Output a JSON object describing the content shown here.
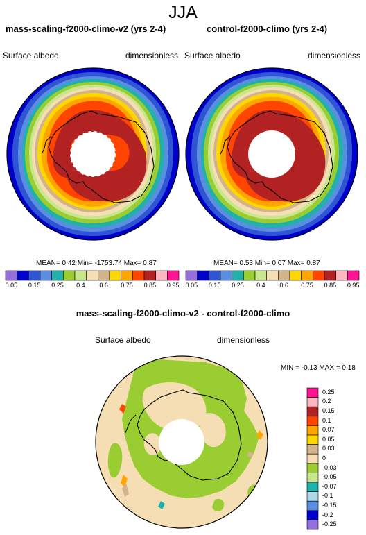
{
  "page": {
    "season": "JJA",
    "left_title": "mass-scaling-f2000-climo-v2 (yrs 2-4)",
    "right_title": "control-f2000-climo (yrs 2-4)",
    "diff_title": "mass-scaling-f2000-climo-v2 - control-f2000-climo"
  },
  "chart_data": [
    {
      "type": "heatmap",
      "title": "mass-scaling-f2000-climo-v2 (yrs 2-4)",
      "variable": "Surface albedo",
      "units": "dimensionless",
      "stats": {
        "mean_label": "MEAN=",
        "mean": "0.42",
        "min_label": "Min=",
        "min": "-1753.74",
        "max_label": "Max=",
        "max": "0.87"
      },
      "colorbar": {
        "labels": [
          "0.05",
          "0.15",
          "0.25",
          "0.4",
          "0.6",
          "0.75",
          "0.85",
          "0.95"
        ],
        "colors": [
          "#9370db",
          "#0000cd",
          "#2f55d4",
          "#5b8ee0",
          "#20b2aa",
          "#9acd32",
          "#c8e68c",
          "#f5deb3",
          "#d2b48c",
          "#ffd700",
          "#ffa500",
          "#ff4500",
          "#b22222",
          "#ffb6c1",
          "#ff1493"
        ]
      }
    },
    {
      "type": "heatmap",
      "title": "control-f2000-climo (yrs 2-4)",
      "variable": "Surface albedo",
      "units": "dimensionless",
      "stats": {
        "mean_label": "MEAN=",
        "mean": "0.53",
        "min_label": "Min=",
        "min": "0.07",
        "max_label": "Max=",
        "max": "0.87"
      },
      "colorbar": {
        "labels": [
          "0.05",
          "0.15",
          "0.25",
          "0.4",
          "0.6",
          "0.75",
          "0.85",
          "0.95"
        ],
        "colors": [
          "#9370db",
          "#0000cd",
          "#2f55d4",
          "#5b8ee0",
          "#20b2aa",
          "#9acd32",
          "#c8e68c",
          "#f5deb3",
          "#d2b48c",
          "#ffd700",
          "#ffa500",
          "#ff4500",
          "#b22222",
          "#ffb6c1",
          "#ff1493"
        ]
      }
    },
    {
      "type": "heatmap",
      "title": "mass-scaling-f2000-climo-v2 - control-f2000-climo",
      "variable": "Surface albedo",
      "units": "dimensionless",
      "stats": {
        "min_label": "MIN =",
        "min": "-0.13",
        "max_label": "MAX =",
        "max": "0.18"
      },
      "colorbar": {
        "labels": [
          "0.25",
          "0.2",
          "0.15",
          "0.1",
          "0.07",
          "0.05",
          "0.03",
          "0",
          "-0.03",
          "-0.05",
          "-0.07",
          "-0.1",
          "-0.15",
          "-0.2",
          "-0.25"
        ],
        "colors": [
          "#ff1493",
          "#ffb6c1",
          "#b22222",
          "#ff4500",
          "#ffa500",
          "#ffd700",
          "#d2b48c",
          "#f5deb3",
          "#9acd32",
          "#c8e68c",
          "#20b2aa",
          "#add8e6",
          "#5b8ee0",
          "#0000cd",
          "#9370db"
        ]
      }
    }
  ]
}
